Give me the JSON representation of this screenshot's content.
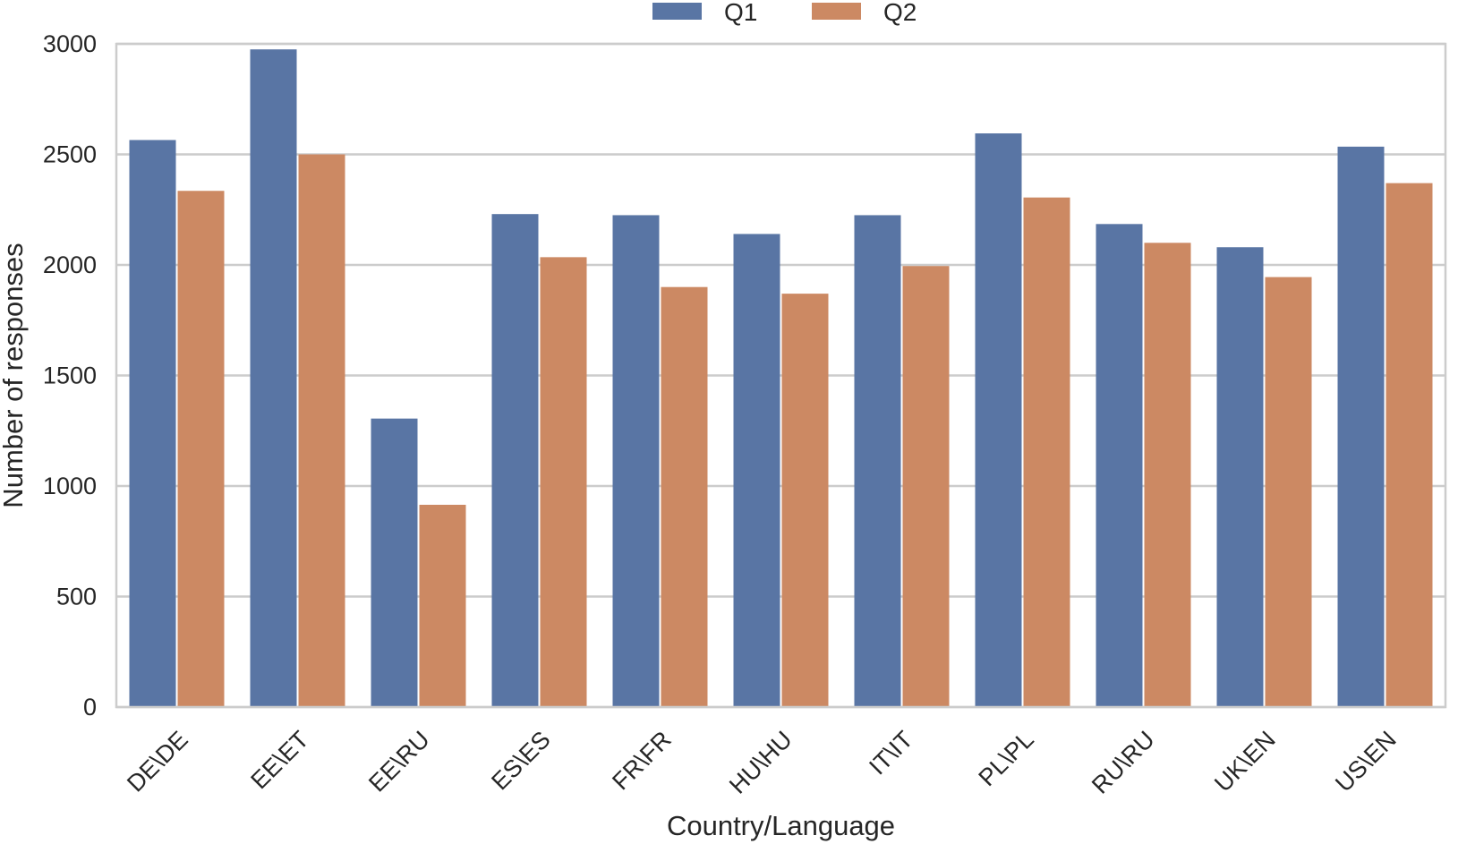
{
  "chart_data": {
    "type": "bar",
    "title": "",
    "xlabel": "Country/Language",
    "ylabel": "Number of responses",
    "ylim": [
      0,
      3000
    ],
    "yticks": [
      0,
      500,
      1000,
      1500,
      2000,
      2500,
      3000
    ],
    "grid": true,
    "legend_position": "top-center",
    "categories": [
      "DE\\DE",
      "EE\\ET",
      "EE\\RU",
      "ES\\ES",
      "FR\\FR",
      "HU\\HU",
      "IT\\IT",
      "PL\\PL",
      "RU\\RU",
      "UK\\EN",
      "US\\EN"
    ],
    "series": [
      {
        "name": "Q1",
        "color": "#5975a4",
        "values": [
          2565,
          2975,
          1305,
          2230,
          2225,
          2140,
          2225,
          2595,
          2185,
          2080,
          2535
        ]
      },
      {
        "name": "Q2",
        "color": "#cc8963",
        "values": [
          2335,
          2500,
          915,
          2035,
          1900,
          1870,
          1995,
          2305,
          2100,
          1945,
          2370
        ]
      }
    ]
  }
}
